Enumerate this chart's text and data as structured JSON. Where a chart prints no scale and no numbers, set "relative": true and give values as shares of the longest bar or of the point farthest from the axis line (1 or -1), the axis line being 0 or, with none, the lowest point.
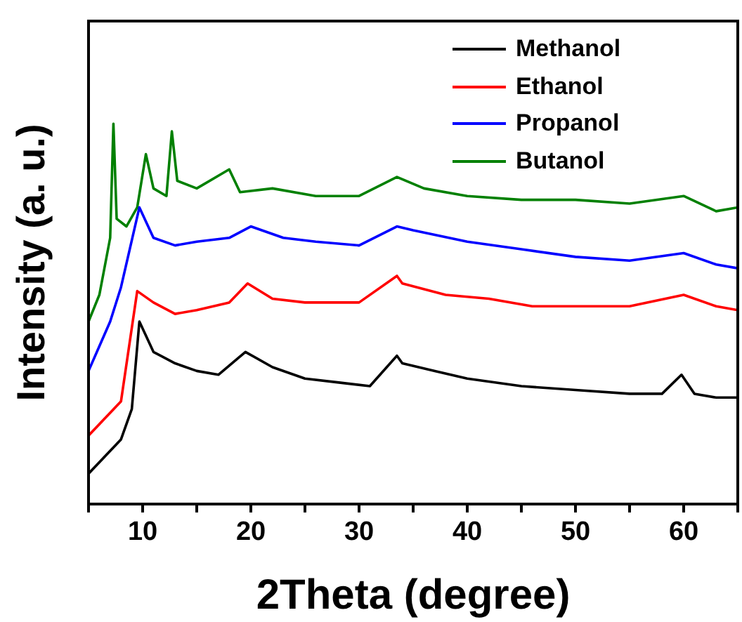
{
  "chart_data": {
    "type": "line",
    "xlabel": "2Theta (degree)",
    "ylabel": "Intensity (a. u.)",
    "relative": true,
    "xlim": [
      5,
      65
    ],
    "xticks": [
      {
        "value": 5,
        "label": null
      },
      10,
      {
        "value": 15,
        "label": null
      },
      20,
      {
        "value": 25,
        "label": null
      },
      30,
      {
        "value": 35,
        "label": null
      },
      40,
      {
        "value": 45,
        "label": null
      },
      50,
      {
        "value": 55,
        "label": null
      },
      60,
      {
        "value": 65,
        "label": null
      }
    ],
    "legend": "top right",
    "marker": "none",
    "line_style": "solid",
    "grid": false,
    "series": [
      {
        "name": "Methanol",
        "color": "#000000",
        "x": [
          5,
          8,
          9,
          9.7,
          11,
          13,
          15,
          17,
          19.5,
          22,
          25,
          28,
          31,
          33.5,
          34,
          37,
          40,
          45,
          50,
          55,
          58,
          59.8,
          61,
          63,
          65
        ],
        "values": [
          0.08,
          0.17,
          0.25,
          0.48,
          0.4,
          0.37,
          0.35,
          0.34,
          0.4,
          0.36,
          0.33,
          0.32,
          0.31,
          0.39,
          0.37,
          0.35,
          0.33,
          0.31,
          0.3,
          0.29,
          0.29,
          0.34,
          0.29,
          0.28,
          0.28
        ]
      },
      {
        "name": "Ethanol",
        "color": "#ff0000",
        "x": [
          5,
          8,
          9.5,
          11,
          13,
          15,
          18,
          19.7,
          22,
          25,
          30,
          33.5,
          34,
          38,
          42,
          46,
          50,
          55,
          60,
          63,
          65
        ],
        "values": [
          0.18,
          0.27,
          0.56,
          0.53,
          0.5,
          0.51,
          0.53,
          0.58,
          0.54,
          0.53,
          0.53,
          0.6,
          0.58,
          0.55,
          0.54,
          0.52,
          0.52,
          0.52,
          0.55,
          0.52,
          0.51
        ]
      },
      {
        "name": "Propanol",
        "color": "#0000ff",
        "x": [
          5,
          7,
          8,
          9.7,
          11,
          13,
          15,
          18,
          20,
          23,
          26,
          30,
          33.5,
          35,
          40,
          45,
          50,
          55,
          60,
          63,
          65
        ],
        "values": [
          0.35,
          0.48,
          0.57,
          0.78,
          0.7,
          0.68,
          0.69,
          0.7,
          0.73,
          0.7,
          0.69,
          0.68,
          0.73,
          0.72,
          0.69,
          0.67,
          0.65,
          0.64,
          0.66,
          0.63,
          0.62
        ]
      },
      {
        "name": "Butanol",
        "color": "#008000",
        "x": [
          5,
          6,
          7,
          7.3,
          7.6,
          8.5,
          9.5,
          10.3,
          11,
          12.2,
          12.7,
          13.2,
          15,
          18,
          19,
          22,
          26,
          30,
          33.5,
          36,
          40,
          45,
          50,
          55,
          60,
          63,
          65
        ],
        "values": [
          0.48,
          0.55,
          0.7,
          1,
          0.75,
          0.73,
          0.78,
          0.92,
          0.83,
          0.81,
          0.98,
          0.85,
          0.83,
          0.88,
          0.82,
          0.83,
          0.81,
          0.81,
          0.86,
          0.83,
          0.81,
          0.8,
          0.8,
          0.79,
          0.81,
          0.77,
          0.78
        ]
      }
    ]
  }
}
